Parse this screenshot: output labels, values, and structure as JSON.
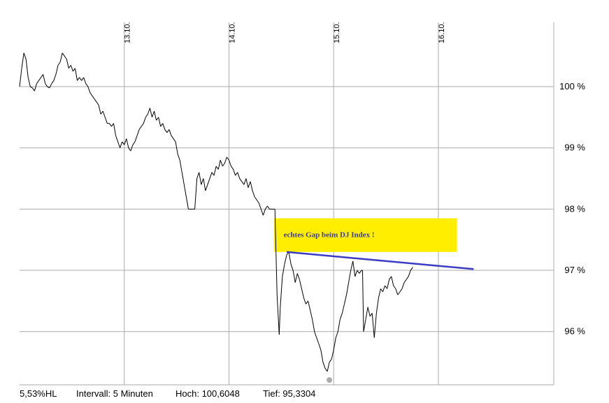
{
  "chart_data": {
    "type": "line",
    "x_tick_labels": [
      "13.10.",
      "14.10.",
      "15.10.",
      "16.10."
    ],
    "y_tick_labels": [
      "96 %",
      "97 %",
      "98 %",
      "99 %",
      "100 %"
    ],
    "y_ticks": [
      96,
      97,
      98,
      99,
      100
    ],
    "ylim": [
      95.13,
      101.05
    ],
    "xlim": [
      0,
      5.0
    ],
    "grid": true,
    "series": [
      {
        "color": "#000000",
        "points": [
          [
            0.0,
            100.0
          ],
          [
            0.02,
            100.3
          ],
          [
            0.04,
            100.55
          ],
          [
            0.06,
            100.45
          ],
          [
            0.08,
            100.15
          ],
          [
            0.1,
            100.0
          ],
          [
            0.12,
            99.98
          ],
          [
            0.14,
            99.93
          ],
          [
            0.16,
            100.05
          ],
          [
            0.18,
            100.1
          ],
          [
            0.2,
            100.15
          ],
          [
            0.22,
            100.2
          ],
          [
            0.24,
            100.05
          ],
          [
            0.26,
            100.0
          ],
          [
            0.28,
            99.98
          ],
          [
            0.3,
            100.05
          ],
          [
            0.32,
            100.1
          ],
          [
            0.34,
            100.2
          ],
          [
            0.36,
            100.35
          ],
          [
            0.38,
            100.4
          ],
          [
            0.4,
            100.55
          ],
          [
            0.42,
            100.5
          ],
          [
            0.44,
            100.45
          ],
          [
            0.46,
            100.3
          ],
          [
            0.48,
            100.35
          ],
          [
            0.5,
            100.25
          ],
          [
            0.52,
            100.3
          ],
          [
            0.54,
            100.1
          ],
          [
            0.56,
            100.15
          ],
          [
            0.58,
            100.1
          ],
          [
            0.6,
            100.15
          ],
          [
            0.62,
            100.05
          ],
          [
            0.64,
            100.0
          ],
          [
            0.66,
            99.9
          ],
          [
            0.68,
            99.85
          ],
          [
            0.7,
            99.8
          ],
          [
            0.72,
            99.75
          ],
          [
            0.74,
            99.7
          ],
          [
            0.76,
            99.55
          ],
          [
            0.78,
            99.6
          ],
          [
            0.8,
            99.5
          ],
          [
            0.82,
            99.4
          ],
          [
            0.84,
            99.4
          ],
          [
            0.86,
            99.35
          ],
          [
            0.88,
            99.4
          ],
          [
            0.9,
            99.2
          ],
          [
            0.92,
            99.1
          ],
          [
            0.94,
            99.0
          ],
          [
            0.96,
            99.1
          ],
          [
            0.98,
            99.05
          ],
          [
            1.0,
            99.15
          ],
          [
            1.02,
            99.0
          ],
          [
            1.04,
            98.95
          ],
          [
            1.06,
            99.05
          ],
          [
            1.08,
            99.1
          ],
          [
            1.1,
            99.2
          ],
          [
            1.12,
            99.3
          ],
          [
            1.14,
            99.35
          ],
          [
            1.16,
            99.4
          ],
          [
            1.18,
            99.5
          ],
          [
            1.2,
            99.55
          ],
          [
            1.22,
            99.65
          ],
          [
            1.24,
            99.5
          ],
          [
            1.26,
            99.6
          ],
          [
            1.28,
            99.45
          ],
          [
            1.3,
            99.5
          ],
          [
            1.32,
            99.35
          ],
          [
            1.34,
            99.4
          ],
          [
            1.36,
            99.3
          ],
          [
            1.38,
            99.25
          ],
          [
            1.4,
            99.3
          ],
          [
            1.42,
            99.2
          ],
          [
            1.44,
            99.15
          ],
          [
            1.46,
            99.1
          ],
          [
            1.48,
            98.9
          ],
          [
            1.5,
            98.8
          ],
          [
            1.52,
            98.6
          ],
          [
            1.54,
            98.4
          ],
          [
            1.56,
            98.2
          ],
          [
            1.58,
            98.0
          ],
          [
            1.6,
            98.0
          ],
          [
            1.62,
            98.0
          ],
          [
            1.64,
            98.0
          ],
          [
            1.66,
            98.5
          ],
          [
            1.68,
            98.6
          ],
          [
            1.7,
            98.4
          ],
          [
            1.72,
            98.5
          ],
          [
            1.74,
            98.3
          ],
          [
            1.76,
            98.4
          ],
          [
            1.78,
            98.5
          ],
          [
            1.8,
            98.6
          ],
          [
            1.82,
            98.55
          ],
          [
            1.84,
            98.7
          ],
          [
            1.86,
            98.65
          ],
          [
            1.88,
            98.8
          ],
          [
            1.9,
            98.7
          ],
          [
            1.92,
            98.75
          ],
          [
            1.94,
            98.85
          ],
          [
            1.96,
            98.8
          ],
          [
            1.98,
            98.7
          ],
          [
            2.0,
            98.65
          ],
          [
            2.02,
            98.55
          ],
          [
            2.04,
            98.6
          ],
          [
            2.06,
            98.5
          ],
          [
            2.08,
            98.45
          ],
          [
            2.1,
            98.4
          ],
          [
            2.12,
            98.5
          ],
          [
            2.14,
            98.35
          ],
          [
            2.16,
            98.45
          ],
          [
            2.18,
            98.3
          ],
          [
            2.2,
            98.2
          ],
          [
            2.22,
            98.15
          ],
          [
            2.24,
            98.1
          ],
          [
            2.26,
            98.0
          ],
          [
            2.28,
            97.9
          ],
          [
            2.3,
            98.0
          ],
          [
            2.32,
            98.05
          ],
          [
            2.34,
            98.0
          ],
          [
            2.36,
            98.0
          ],
          [
            2.38,
            98.0
          ],
          [
            2.39,
            98.0
          ],
          [
            2.41,
            96.6
          ],
          [
            2.43,
            95.95
          ],
          [
            2.44,
            96.4
          ],
          [
            2.46,
            96.9
          ],
          [
            2.48,
            97.1
          ],
          [
            2.5,
            97.25
          ],
          [
            2.52,
            97.3
          ],
          [
            2.54,
            97.1
          ],
          [
            2.56,
            97.0
          ],
          [
            2.58,
            96.8
          ],
          [
            2.6,
            96.95
          ],
          [
            2.62,
            96.85
          ],
          [
            2.64,
            96.7
          ],
          [
            2.66,
            96.55
          ],
          [
            2.68,
            96.45
          ],
          [
            2.7,
            96.5
          ],
          [
            2.72,
            96.35
          ],
          [
            2.74,
            96.2
          ],
          [
            2.76,
            96.0
          ],
          [
            2.78,
            95.9
          ],
          [
            2.8,
            95.8
          ],
          [
            2.82,
            95.7
          ],
          [
            2.84,
            95.5
          ],
          [
            2.86,
            95.4
          ],
          [
            2.88,
            95.35
          ],
          [
            2.9,
            95.5
          ],
          [
            2.92,
            95.55
          ],
          [
            2.94,
            95.7
          ],
          [
            2.96,
            95.9
          ],
          [
            2.98,
            96.0
          ],
          [
            3.0,
            96.2
          ],
          [
            3.02,
            96.3
          ],
          [
            3.04,
            96.45
          ],
          [
            3.06,
            96.6
          ],
          [
            3.08,
            96.8
          ],
          [
            3.1,
            97.0
          ],
          [
            3.12,
            97.15
          ],
          [
            3.14,
            96.9
          ],
          [
            3.16,
            97.0
          ],
          [
            3.18,
            96.95
          ],
          [
            3.2,
            97.0
          ],
          [
            3.21,
            97.0
          ],
          [
            3.22,
            96.0
          ],
          [
            3.24,
            96.2
          ],
          [
            3.26,
            96.4
          ],
          [
            3.28,
            96.25
          ],
          [
            3.3,
            96.3
          ],
          [
            3.32,
            95.9
          ],
          [
            3.34,
            96.3
          ],
          [
            3.36,
            96.55
          ],
          [
            3.38,
            96.7
          ],
          [
            3.4,
            96.65
          ],
          [
            3.42,
            96.75
          ],
          [
            3.44,
            96.7
          ],
          [
            3.46,
            96.85
          ],
          [
            3.48,
            96.9
          ],
          [
            3.5,
            96.75
          ],
          [
            3.52,
            96.7
          ],
          [
            3.54,
            96.6
          ],
          [
            3.56,
            96.65
          ],
          [
            3.58,
            96.7
          ],
          [
            3.6,
            96.8
          ],
          [
            3.62,
            96.85
          ],
          [
            3.64,
            96.9
          ],
          [
            3.66,
            97.0
          ],
          [
            3.68,
            97.05
          ]
        ]
      }
    ],
    "trendline": {
      "color": "#3b3bc4",
      "from": [
        2.5,
        97.3
      ],
      "to": [
        4.25,
        97.02
      ]
    },
    "annotation": {
      "text": "echtes Gap beim DJ Index !",
      "background": "#ffee00",
      "y_range": [
        97.3,
        97.85
      ],
      "x_range": [
        2.38,
        4.09
      ]
    },
    "low_marker": {
      "x": 2.9,
      "y": 95.3,
      "color": "#aaaaaa"
    },
    "day_boundaries": [
      0.98,
      1.96,
      2.94,
      3.92
    ]
  },
  "footer": {
    "range": "5,53%HL",
    "interval": "Intervall: 5 Minuten",
    "high": "Hoch: 100,6048",
    "low": "Tief: 95,3304"
  },
  "colors": {
    "grid": "#aaaaaa",
    "line": "#000000"
  }
}
